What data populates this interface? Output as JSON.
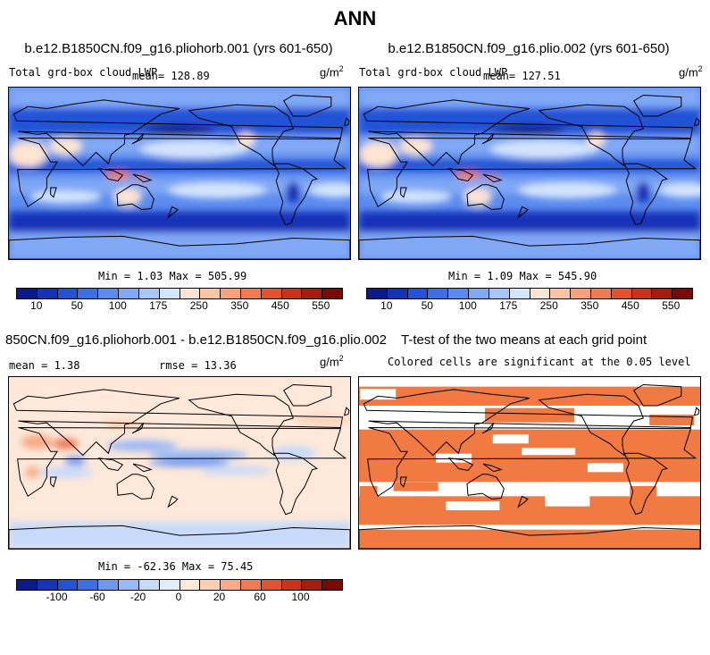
{
  "chart_data": [
    {
      "type": "heatmap",
      "title": "b.e12.B1850CN.f09_g16.pliohorb.001 (yrs 601-650)",
      "variable": "Total grd-box cloud LWP",
      "mean_text": "mean= 128.89",
      "units": "g/m",
      "units_exp": "2",
      "min_max": "Min =   1.03 Max = 505.99",
      "colorbar_ticks": [
        "10",
        "50",
        "100",
        "175",
        "250",
        "350",
        "450",
        "550"
      ],
      "colorbar_colors": [
        "#0a1a8c",
        "#1533b8",
        "#2452d6",
        "#3c6fe6",
        "#5b8bef",
        "#80a8f5",
        "#a8c6fa",
        "#d3e4fd",
        "#fde4d3",
        "#fbc4a4",
        "#f7a07a",
        "#f07a52",
        "#e2522d",
        "#c9331a",
        "#a51d0d",
        "#7b0a05"
      ]
    },
    {
      "type": "heatmap",
      "title": "b.e12.B1850CN.f09_g16.plio.002 (yrs 601-650)",
      "variable": "Total grd-box cloud LWP",
      "mean_text": "mean= 127.51",
      "units": "g/m",
      "units_exp": "2",
      "min_max": "Min =   1.09 Max = 545.90",
      "colorbar_ticks": [
        "10",
        "50",
        "100",
        "175",
        "250",
        "350",
        "450",
        "550"
      ],
      "colorbar_colors": [
        "#0a1a8c",
        "#1533b8",
        "#2452d6",
        "#3c6fe6",
        "#5b8bef",
        "#80a8f5",
        "#a8c6fa",
        "#d3e4fd",
        "#fde4d3",
        "#fbc4a4",
        "#f7a07a",
        "#f07a52",
        "#e2522d",
        "#c9331a",
        "#a51d0d",
        "#7b0a05"
      ]
    },
    {
      "type": "heatmap",
      "title": "850CN.f09_g16.pliohorb.001 - b.e12.B1850CN.f09_g16.plio.002",
      "mean_text": "mean =   1.38",
      "rmse_text": "rmse =  13.36",
      "units": "g/m",
      "units_exp": "2",
      "min_max": "Min = -62.36 Max =  75.45",
      "colorbar_ticks": [
        "-100",
        "-60",
        "-20",
        "0",
        "20",
        "60",
        "100"
      ],
      "colorbar_colors": [
        "#0a1a8c",
        "#1533b8",
        "#2452d6",
        "#3c6fe6",
        "#6f97ee",
        "#9ab9f6",
        "#c7daf9",
        "#e3ecfb",
        "#fde8da",
        "#fbcfb2",
        "#f8ab85",
        "#f07a52",
        "#e2522d",
        "#c9331a",
        "#a51d0d",
        "#7b0a05"
      ]
    },
    {
      "type": "heatmap",
      "title": "T-test of the two means at each grid point",
      "subtitle": "Colored cells are significant at the 0.05 level",
      "significant_color": "#f07a41"
    }
  ],
  "page": {
    "title": "ANN"
  }
}
